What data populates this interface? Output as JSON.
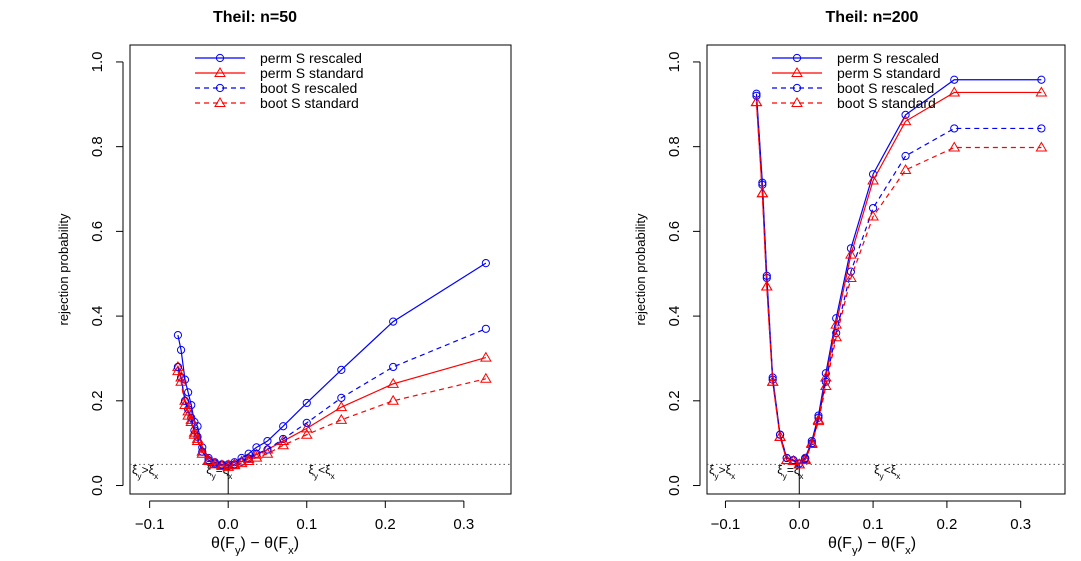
{
  "chart_data": [
    {
      "type": "line",
      "title": "Theil: n=50",
      "xlabel": "θ(Fy) − θ(Fx)",
      "ylabel": "rejection probability",
      "xlim": [
        -0.125,
        0.36
      ],
      "ylim": [
        -0.02,
        1.04
      ],
      "xticks": [
        -0.1,
        0.0,
        0.1,
        0.2,
        0.3
      ],
      "xtick_labels": [
        "−0.1",
        "0.0",
        "0.1",
        "0.2",
        "0.3"
      ],
      "yticks": [
        0.0,
        0.2,
        0.4,
        0.6,
        0.8,
        1.0
      ],
      "ytick_labels": [
        "0.0",
        "0.2",
        "0.4",
        "0.6",
        "0.8",
        "1.0"
      ],
      "reference_line": 0.05,
      "annotations": [
        "ξy>ξx",
        "ξy=ξx",
        "ξy<ξx"
      ],
      "legend_position": "top",
      "x": [
        -0.064,
        -0.06,
        -0.055,
        -0.051,
        -0.047,
        -0.043,
        -0.039,
        -0.033,
        -0.025,
        -0.017,
        -0.008,
        0.0,
        0.008,
        0.017,
        0.026,
        0.036,
        0.05,
        0.07,
        0.1,
        0.144,
        0.21,
        0.328
      ],
      "series": [
        {
          "name": "perm S rescaled",
          "color": "#0000ff",
          "dash": "solid",
          "marker": "circle",
          "values": [
            0.355,
            0.32,
            0.25,
            0.22,
            0.19,
            0.15,
            0.14,
            0.09,
            0.065,
            0.055,
            0.05,
            0.05,
            0.055,
            0.065,
            0.075,
            0.09,
            0.105,
            0.14,
            0.195,
            0.273,
            0.387,
            0.525
          ]
        },
        {
          "name": "perm S standard",
          "color": "#ff0000",
          "dash": "solid",
          "marker": "triangle",
          "values": [
            0.28,
            0.255,
            0.2,
            0.175,
            0.155,
            0.125,
            0.11,
            0.08,
            0.06,
            0.052,
            0.048,
            0.048,
            0.05,
            0.057,
            0.063,
            0.073,
            0.085,
            0.105,
            0.135,
            0.185,
            0.24,
            0.302
          ]
        },
        {
          "name": "boot S rescaled",
          "color": "#0000ff",
          "dash": "dashed",
          "marker": "circle",
          "values": [
            0.28,
            0.255,
            0.2,
            0.18,
            0.16,
            0.13,
            0.115,
            0.08,
            0.06,
            0.052,
            0.048,
            0.046,
            0.05,
            0.056,
            0.064,
            0.075,
            0.085,
            0.11,
            0.148,
            0.207,
            0.28,
            0.37
          ]
        },
        {
          "name": "boot S standard",
          "color": "#ff0000",
          "dash": "dashed",
          "marker": "triangle",
          "values": [
            0.27,
            0.245,
            0.19,
            0.165,
            0.15,
            0.12,
            0.105,
            0.075,
            0.058,
            0.05,
            0.046,
            0.044,
            0.048,
            0.053,
            0.058,
            0.066,
            0.075,
            0.095,
            0.12,
            0.155,
            0.2,
            0.252
          ]
        }
      ]
    },
    {
      "type": "line",
      "title": "Theil: n=200",
      "xlabel": "θ(Fy) − θ(Fx)",
      "ylabel": "rejection probability",
      "xlim": [
        -0.125,
        0.36
      ],
      "ylim": [
        -0.02,
        1.04
      ],
      "xticks": [
        -0.1,
        0.0,
        0.1,
        0.2,
        0.3
      ],
      "xtick_labels": [
        "−0.1",
        "0.0",
        "0.1",
        "0.2",
        "0.3"
      ],
      "yticks": [
        0.0,
        0.2,
        0.4,
        0.6,
        0.8,
        1.0
      ],
      "ytick_labels": [
        "0.0",
        "0.2",
        "0.4",
        "0.6",
        "0.8",
        "1.0"
      ],
      "reference_line": 0.05,
      "annotations": [
        "ξy>ξx",
        "ξy=ξx",
        "ξy<ξx"
      ],
      "legend_position": "top",
      "x": [
        -0.058,
        -0.05,
        -0.044,
        -0.036,
        -0.026,
        -0.017,
        -0.008,
        0.0,
        0.008,
        0.017,
        0.026,
        0.036,
        0.05,
        0.07,
        0.1,
        0.144,
        0.21,
        0.328
      ],
      "series": [
        {
          "name": "perm S rescaled",
          "color": "#0000ff",
          "dash": "solid",
          "marker": "circle",
          "values": [
            0.925,
            0.715,
            0.495,
            0.255,
            0.12,
            0.065,
            0.06,
            0.052,
            0.065,
            0.105,
            0.165,
            0.265,
            0.395,
            0.56,
            0.735,
            0.875,
            0.958,
            0.958
          ]
        },
        {
          "name": "perm S standard",
          "color": "#ff0000",
          "dash": "solid",
          "marker": "triangle",
          "values": [
            0.905,
            0.69,
            0.47,
            0.245,
            0.115,
            0.06,
            0.058,
            0.05,
            0.062,
            0.1,
            0.155,
            0.255,
            0.38,
            0.545,
            0.72,
            0.86,
            0.928,
            0.928
          ]
        },
        {
          "name": "boot S rescaled",
          "color": "#0000ff",
          "dash": "dashed",
          "marker": "circle",
          "values": [
            0.92,
            0.71,
            0.49,
            0.25,
            0.12,
            0.065,
            0.06,
            0.052,
            0.063,
            0.1,
            0.16,
            0.245,
            0.36,
            0.505,
            0.655,
            0.778,
            0.843,
            0.843
          ]
        },
        {
          "name": "boot S standard",
          "color": "#ff0000",
          "dash": "dashed",
          "marker": "triangle",
          "values": [
            0.905,
            0.69,
            0.47,
            0.245,
            0.115,
            0.06,
            0.058,
            0.05,
            0.06,
            0.098,
            0.152,
            0.235,
            0.35,
            0.49,
            0.635,
            0.745,
            0.798,
            0.798
          ]
        }
      ]
    }
  ]
}
